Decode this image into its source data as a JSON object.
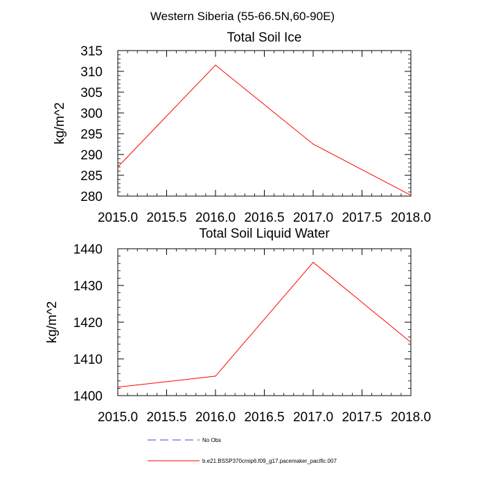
{
  "figure": {
    "title": "Western Siberia (55-66.5N,60-90E)"
  },
  "chart_data": [
    {
      "type": "line",
      "title": "Total Soil Ice",
      "xlabel": "",
      "ylabel": "kg/m^2",
      "xlim": [
        2015.0,
        2018.0
      ],
      "ylim": [
        280,
        315
      ],
      "xticks": [
        2015.0,
        2015.5,
        2016.0,
        2016.5,
        2017.0,
        2017.5,
        2018.0
      ],
      "xtick_labels": [
        "2015.0",
        "2015.5",
        "2016.0",
        "2016.5",
        "2017.0",
        "2017.5",
        "2018.0"
      ],
      "yticks": [
        280,
        285,
        290,
        295,
        300,
        305,
        310,
        315
      ],
      "ytick_labels": [
        "280",
        "285",
        "290",
        "295",
        "300",
        "305",
        "310",
        "315"
      ],
      "x_minor_step": 0.1,
      "y_minor_step": 1,
      "grid": false,
      "series": [
        {
          "name": "b.e21.BSSP370cmip6.f09_g17.pacemaker_pacific.007",
          "color": "#ff0000",
          "x": [
            2015.0,
            2016.0,
            2017.0,
            2018.0
          ],
          "y": [
            287.0,
            311.5,
            292.5,
            280.2
          ]
        }
      ]
    },
    {
      "type": "line",
      "title": "Total Soil Liquid Water",
      "xlabel": "",
      "ylabel": "kg/m^2",
      "xlim": [
        2015.0,
        2018.0
      ],
      "ylim": [
        1400,
        1440
      ],
      "xticks": [
        2015.0,
        2015.5,
        2016.0,
        2016.5,
        2017.0,
        2017.5,
        2018.0
      ],
      "xtick_labels": [
        "2015.0",
        "2015.5",
        "2016.0",
        "2016.5",
        "2017.0",
        "2017.5",
        "2018.0"
      ],
      "yticks": [
        1400,
        1410,
        1420,
        1430,
        1440
      ],
      "ytick_labels": [
        "1400",
        "1410",
        "1420",
        "1430",
        "1440"
      ],
      "x_minor_step": 0.1,
      "y_minor_step": 2,
      "grid": false,
      "series": [
        {
          "name": "b.e21.BSSP370cmip6.f09_g17.pacemaker_pacific.007",
          "color": "#ff0000",
          "x": [
            2015.0,
            2016.0,
            2017.0,
            2018.0
          ],
          "y": [
            1402.3,
            1405.3,
            1436.3,
            1414.5
          ]
        }
      ]
    }
  ],
  "legend": {
    "placement": "bottom",
    "items": [
      {
        "label": "No Obs",
        "color": "#4444cc",
        "style": "dashed"
      },
      {
        "label": "b.e21.BSSP370cmip6.f09_g17.pacemaker_pacific.007",
        "color": "#ff0000",
        "style": "solid"
      }
    ]
  }
}
